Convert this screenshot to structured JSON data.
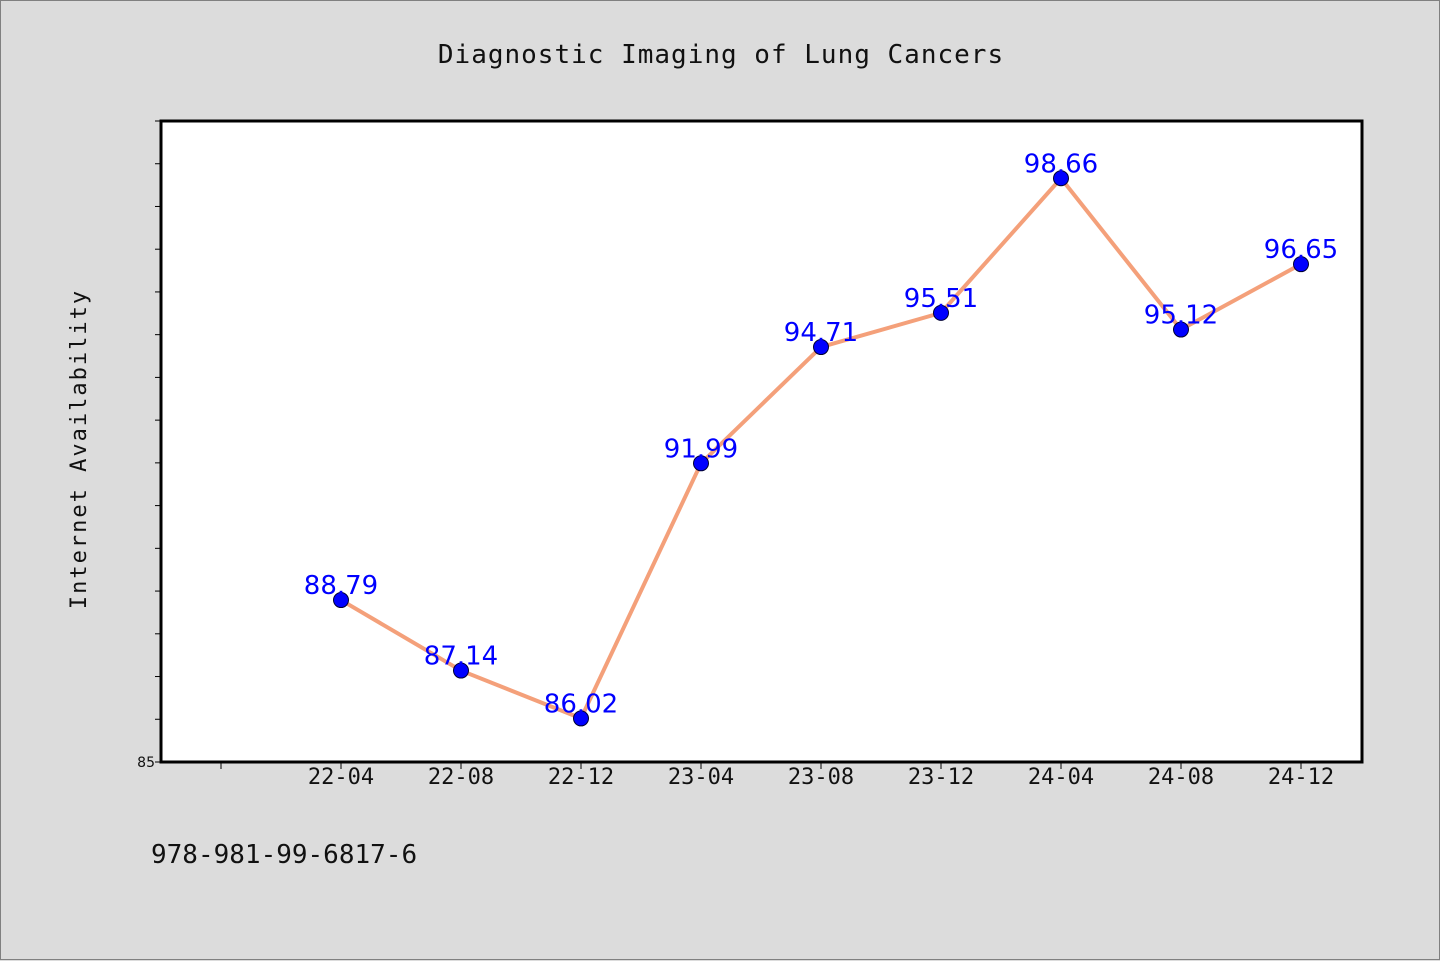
{
  "chart_data": {
    "type": "line",
    "title": "Diagnostic Imaging of Lung Cancers",
    "xlabel": "",
    "ylabel": "Internet Availability",
    "categories": [
      "22-04",
      "22-08",
      "22-12",
      "23-04",
      "23-08",
      "23-12",
      "24-04",
      "24-08",
      "24-12"
    ],
    "series": [
      {
        "values": [
          88.79,
          87.14,
          86.02,
          91.99,
          94.71,
          95.51,
          98.66,
          95.12,
          96.65
        ]
      }
    ],
    "data_labels": [
      "88.79",
      "87.14",
      "86.02",
      "91.99",
      "94.71",
      "95.51",
      "98.66",
      "95.12",
      "96.65"
    ],
    "y_tick_labels": [
      "85"
    ],
    "ylim": [
      85,
      100
    ],
    "grid": false,
    "line_color": "#f4a07a",
    "marker_color": "#0000ff",
    "label_color": "#0000ff",
    "background_color": "#dcdcdc",
    "plot_background_color": "#ffffff"
  },
  "footer": {
    "isbn": "978-981-99-6817-6"
  }
}
